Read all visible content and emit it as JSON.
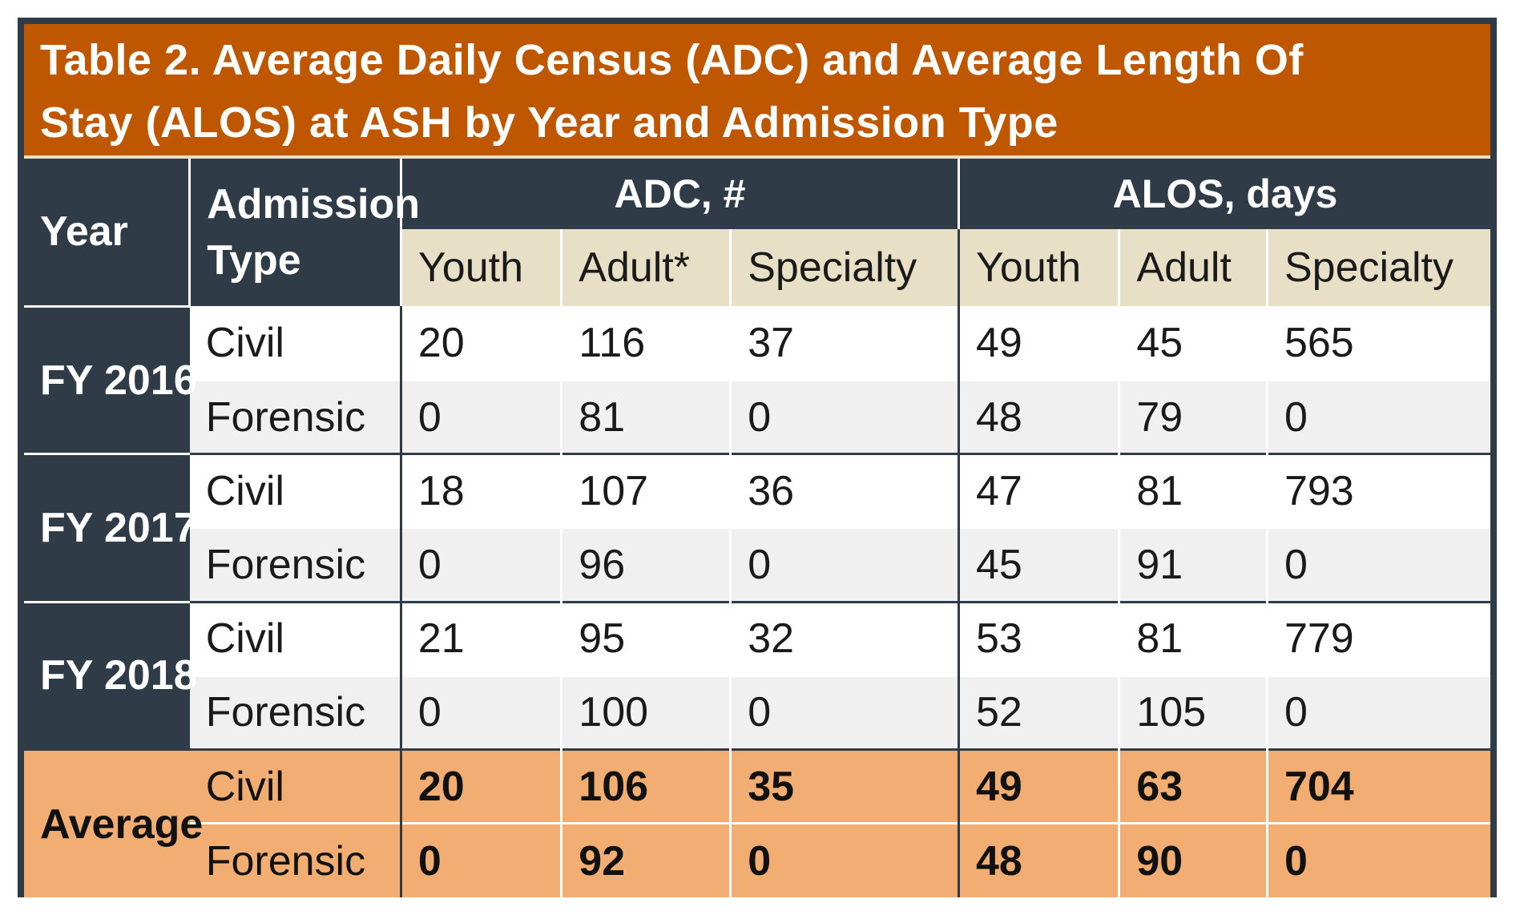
{
  "title": {
    "line1": "Table 2. Average Daily Census (ADC) and Average Length Of",
    "line2": "Stay (ALOS) at ASH by Year and Admission Type"
  },
  "headers": {
    "year": "Year",
    "admission_line1": "Admission",
    "admission_line2": "Type",
    "adc_group": "ADC, #",
    "alos_group": "ALOS, days",
    "adc_sub": [
      "Youth",
      "Adult*",
      "Specialty"
    ],
    "alos_sub": [
      "Youth",
      "Adult",
      "Specialty"
    ]
  },
  "rows": [
    {
      "year": "FY 2016",
      "civil": {
        "label": "Civil",
        "adc": [
          "20",
          "116",
          "37"
        ],
        "alos": [
          "49",
          "45",
          "565"
        ]
      },
      "forensic": {
        "label": "Forensic",
        "adc": [
          "0",
          "81",
          "0"
        ],
        "alos": [
          "48",
          "79",
          "0"
        ]
      }
    },
    {
      "year": "FY 2017",
      "civil": {
        "label": "Civil",
        "adc": [
          "18",
          "107",
          "36"
        ],
        "alos": [
          "47",
          "81",
          "793"
        ]
      },
      "forensic": {
        "label": "Forensic",
        "adc": [
          "0",
          "96",
          "0"
        ],
        "alos": [
          "45",
          "91",
          "0"
        ]
      }
    },
    {
      "year": "FY 2018",
      "civil": {
        "label": "Civil",
        "adc": [
          "21",
          "95",
          "32"
        ],
        "alos": [
          "53",
          "81",
          "779"
        ]
      },
      "forensic": {
        "label": "Forensic",
        "adc": [
          "0",
          "100",
          "0"
        ],
        "alos": [
          "52",
          "105",
          "0"
        ]
      }
    }
  ],
  "average": {
    "year": "Average",
    "civil": {
      "label": "Civil",
      "adc": [
        "20",
        "106",
        "35"
      ],
      "alos": [
        "49",
        "63",
        "704"
      ]
    },
    "forensic": {
      "label": "Forensic",
      "adc": [
        "0",
        "92",
        "0"
      ],
      "alos": [
        "48",
        "90",
        "0"
      ]
    }
  },
  "colors": {
    "title_bg": "#bf5700",
    "header_dark": "#2f3c48",
    "subheader_bg": "#e7dfc6",
    "average_bg": "#f2ad72",
    "alt_row_bg": "#f0f0f0"
  }
}
